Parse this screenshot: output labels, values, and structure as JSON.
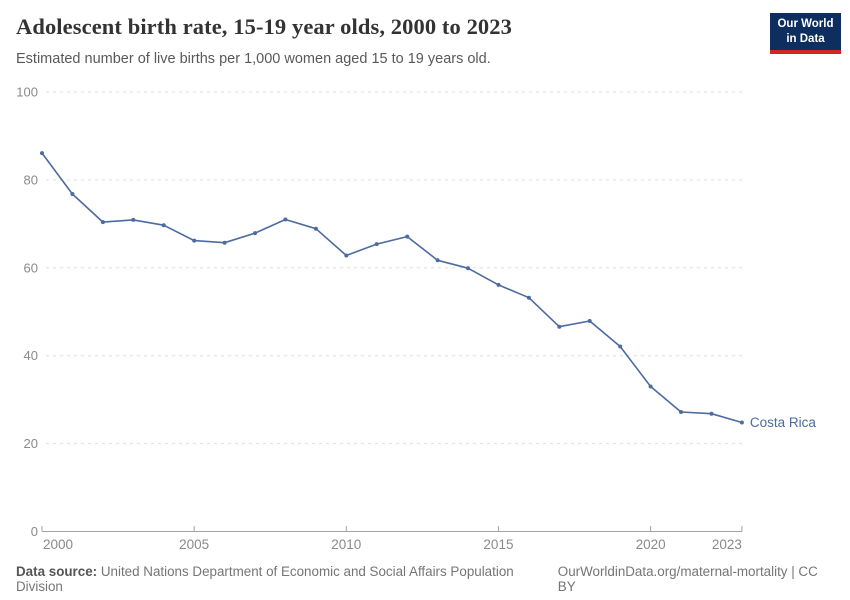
{
  "header": {
    "title": "Adolescent birth rate, 15-19 year olds, 2000 to 2023",
    "subtitle": "Estimated number of live births per 1,000 women aged 15 to 19 years old."
  },
  "logo": {
    "line1": "Our World",
    "line2": "in Data",
    "bg_color": "#0d2e5e",
    "bar_color": "#d0281e"
  },
  "chart_data": {
    "type": "line",
    "title": "Adolescent birth rate, 15-19 year olds, 2000 to 2023",
    "subtitle": "Estimated number of live births per 1,000 women aged 15 to 19 years old.",
    "xlabel": "",
    "ylabel": "",
    "ylim": [
      0,
      100
    ],
    "yticks": [
      0,
      20,
      40,
      60,
      80,
      100
    ],
    "xticks": [
      2000,
      2005,
      2010,
      2015,
      2020,
      2023
    ],
    "grid": "horizontal-dashed",
    "legend_position": "end-of-line-label",
    "x": [
      2000,
      2001,
      2002,
      2003,
      2004,
      2005,
      2006,
      2007,
      2008,
      2009,
      2010,
      2011,
      2012,
      2013,
      2014,
      2015,
      2016,
      2017,
      2018,
      2019,
      2020,
      2021,
      2022,
      2023
    ],
    "series": [
      {
        "name": "Costa Rica",
        "color": "#4c6ba0",
        "values": [
          86.1,
          76.8,
          70.4,
          70.9,
          69.7,
          66.2,
          65.7,
          67.9,
          71.0,
          68.9,
          62.8,
          65.4,
          67.1,
          61.7,
          59.9,
          56.1,
          53.2,
          46.6,
          47.9,
          42.1,
          33.0,
          27.2,
          26.8,
          24.8
        ]
      }
    ],
    "axis_color": "#a3a3a3",
    "tick_label_color": "#8a8a8a",
    "gridline_color": "#dedede"
  },
  "footer": {
    "source_label": "Data source:",
    "source_text": "United Nations Department of Economic and Social Affairs Population Division",
    "link_text": "OurWorldinData.org/maternal-mortality | CC BY"
  }
}
